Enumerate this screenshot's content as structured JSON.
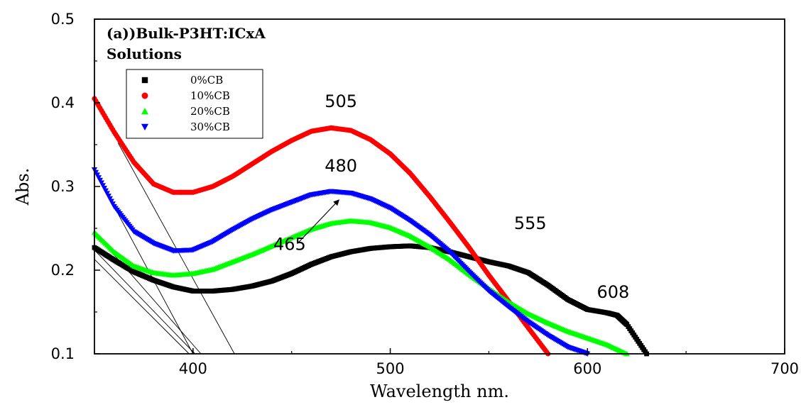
{
  "chart_data": {
    "type": "line",
    "title": "(a))Bulk-P3HT:ICxA",
    "subtitle": "Solutions",
    "xlabel": "Wavelength nm.",
    "ylabel": "Abs.",
    "xlim": [
      350,
      700
    ],
    "ylim": [
      0.1,
      0.5
    ],
    "x_ticks": [
      400,
      500,
      600,
      700
    ],
    "y_ticks": [
      0.1,
      0.2,
      0.3,
      0.4,
      0.5
    ],
    "x_tick_labels": [
      "400",
      "500",
      "600",
      "700"
    ],
    "y_tick_labels": [
      "0.1",
      "0.2",
      "0.3",
      "0.4",
      "0.5"
    ],
    "grid": false,
    "legend_position": "top-left",
    "series": [
      {
        "name": "0%CB",
        "color": "#000000",
        "marker": "square",
        "points": [
          [
            350,
            0.227
          ],
          [
            360,
            0.212
          ],
          [
            370,
            0.198
          ],
          [
            380,
            0.188
          ],
          [
            390,
            0.18
          ],
          [
            400,
            0.175
          ],
          [
            410,
            0.175
          ],
          [
            420,
            0.177
          ],
          [
            430,
            0.181
          ],
          [
            440,
            0.187
          ],
          [
            450,
            0.196
          ],
          [
            460,
            0.207
          ],
          [
            470,
            0.216
          ],
          [
            480,
            0.222
          ],
          [
            490,
            0.226
          ],
          [
            500,
            0.228
          ],
          [
            510,
            0.229
          ],
          [
            520,
            0.227
          ],
          [
            530,
            0.222
          ],
          [
            540,
            0.216
          ],
          [
            550,
            0.21
          ],
          [
            560,
            0.205
          ],
          [
            570,
            0.197
          ],
          [
            580,
            0.182
          ],
          [
            590,
            0.165
          ],
          [
            600,
            0.153
          ],
          [
            610,
            0.149
          ],
          [
            615,
            0.146
          ],
          [
            620,
            0.135
          ],
          [
            630,
            0.1
          ]
        ]
      },
      {
        "name": "10%CB",
        "color": "#ff0000",
        "marker": "circle",
        "points": [
          [
            350,
            0.405
          ],
          [
            360,
            0.365
          ],
          [
            370,
            0.329
          ],
          [
            380,
            0.303
          ],
          [
            390,
            0.293
          ],
          [
            400,
            0.293
          ],
          [
            410,
            0.3
          ],
          [
            420,
            0.312
          ],
          [
            430,
            0.327
          ],
          [
            440,
            0.342
          ],
          [
            450,
            0.355
          ],
          [
            460,
            0.366
          ],
          [
            470,
            0.37
          ],
          [
            480,
            0.367
          ],
          [
            490,
            0.356
          ],
          [
            500,
            0.339
          ],
          [
            510,
            0.316
          ],
          [
            520,
            0.288
          ],
          [
            530,
            0.258
          ],
          [
            540,
            0.227
          ],
          [
            550,
            0.194
          ],
          [
            560,
            0.163
          ],
          [
            570,
            0.131
          ],
          [
            580,
            0.1
          ]
        ]
      },
      {
        "name": "20%CB",
        "color": "#00ff00",
        "marker": "triangle-up",
        "points": [
          [
            350,
            0.245
          ],
          [
            360,
            0.222
          ],
          [
            370,
            0.205
          ],
          [
            380,
            0.197
          ],
          [
            390,
            0.194
          ],
          [
            400,
            0.196
          ],
          [
            410,
            0.201
          ],
          [
            420,
            0.21
          ],
          [
            430,
            0.219
          ],
          [
            440,
            0.229
          ],
          [
            450,
            0.239
          ],
          [
            460,
            0.249
          ],
          [
            470,
            0.256
          ],
          [
            480,
            0.259
          ],
          [
            490,
            0.257
          ],
          [
            500,
            0.251
          ],
          [
            510,
            0.241
          ],
          [
            520,
            0.228
          ],
          [
            530,
            0.213
          ],
          [
            540,
            0.195
          ],
          [
            550,
            0.178
          ],
          [
            560,
            0.162
          ],
          [
            570,
            0.148
          ],
          [
            580,
            0.137
          ],
          [
            590,
            0.127
          ],
          [
            600,
            0.119
          ],
          [
            610,
            0.111
          ],
          [
            620,
            0.1
          ]
        ]
      },
      {
        "name": "30%CB",
        "color": "#0000ff",
        "marker": "triangle-down",
        "points": [
          [
            350,
            0.32
          ],
          [
            360,
            0.276
          ],
          [
            370,
            0.246
          ],
          [
            380,
            0.232
          ],
          [
            390,
            0.223
          ],
          [
            400,
            0.224
          ],
          [
            410,
            0.234
          ],
          [
            420,
            0.248
          ],
          [
            430,
            0.261
          ],
          [
            440,
            0.272
          ],
          [
            450,
            0.281
          ],
          [
            460,
            0.29
          ],
          [
            470,
            0.294
          ],
          [
            480,
            0.292
          ],
          [
            490,
            0.285
          ],
          [
            500,
            0.274
          ],
          [
            510,
            0.259
          ],
          [
            520,
            0.242
          ],
          [
            530,
            0.222
          ],
          [
            540,
            0.198
          ],
          [
            550,
            0.175
          ],
          [
            560,
            0.156
          ],
          [
            570,
            0.138
          ],
          [
            580,
            0.122
          ],
          [
            590,
            0.108
          ],
          [
            600,
            0.1
          ]
        ]
      }
    ],
    "annotations": [
      {
        "text": "505",
        "x": 475,
        "y": 0.395
      },
      {
        "text": "480",
        "x": 475,
        "y": 0.318
      },
      {
        "text": "465",
        "x": 449,
        "y": 0.224
      },
      {
        "text": "555",
        "x": 571,
        "y": 0.249
      },
      {
        "text": "608",
        "x": 613,
        "y": 0.167
      }
    ],
    "reference_lines": [
      {
        "from": [
          350,
          0.224
        ],
        "to": [
          401,
          0.1
        ]
      },
      {
        "from": [
          350,
          0.213
        ],
        "to": [
          398,
          0.1
        ]
      },
      {
        "from": [
          350,
          0.245
        ],
        "to": [
          404,
          0.1
        ]
      },
      {
        "from": [
          350,
          0.32
        ],
        "to": [
          400,
          0.1
        ]
      },
      {
        "from": [
          362,
          0.352
        ],
        "to": [
          421,
          0.1
        ]
      }
    ],
    "arrows": [
      {
        "from": [
          453,
          0.232
        ],
        "to": [
          474,
          0.284
        ]
      }
    ]
  }
}
